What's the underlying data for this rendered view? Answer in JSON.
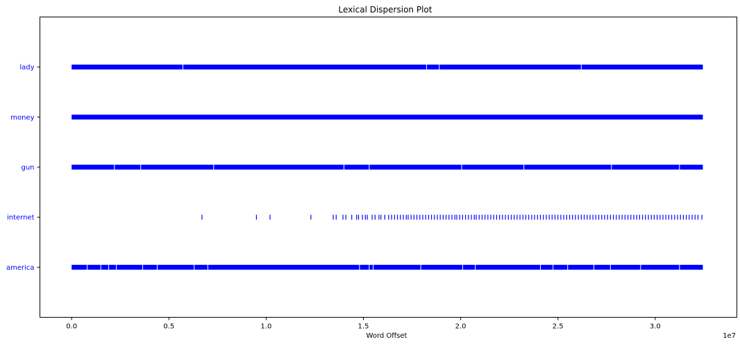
{
  "chart_data": {
    "type": "scatter",
    "title": "Lexical Dispersion Plot",
    "xlabel": "Word Offset",
    "ylabel": "",
    "x_offset_label": "1e7",
    "x_tick_labels": [
      "0.0",
      "0.5",
      "1.0",
      "1.5",
      "2.0",
      "2.5",
      "3.0"
    ],
    "x_ticks": [
      0,
      5000000,
      10000000,
      15000000,
      20000000,
      25000000,
      30000000
    ],
    "xlim": [
      -1630000,
      34200000
    ],
    "grid": false,
    "legend": "none",
    "marker_color": "#0000ff",
    "categories": [
      "lady",
      "money",
      "gun",
      "internet",
      "america"
    ],
    "series": [
      {
        "word": "lady",
        "density": "continuous",
        "offsets": [
          0,
          32450000
        ],
        "gaps": [
          5720000,
          18250000,
          18900000,
          26200000
        ]
      },
      {
        "word": "money",
        "density": "continuous",
        "offsets": [
          0,
          32450000
        ],
        "gaps": []
      },
      {
        "word": "gun",
        "density": "continuous",
        "offsets": [
          0,
          32450000
        ],
        "gaps": [
          2200000,
          3550000,
          7300000,
          14000000,
          15300000,
          20050000,
          23250000,
          27750000,
          31250000
        ]
      },
      {
        "word": "internet",
        "density": "sparse",
        "offsets": [
          6700000,
          9500000,
          10200000,
          12300000,
          13450000,
          13600000,
          13950000,
          14100000,
          14400000,
          14650000,
          14750000,
          14950000,
          15100000,
          15200000,
          15450000,
          15600000,
          15800000,
          15900000,
          16100000,
          16300000,
          16450000,
          16600000,
          16750000,
          16900000,
          17050000,
          17200000,
          17300000,
          17450000,
          17600000,
          17750000,
          17900000,
          18050000,
          18200000,
          18350000,
          18500000,
          18650000,
          18800000,
          18950000,
          19100000,
          19250000,
          19400000,
          19550000,
          19700000,
          19800000,
          19950000,
          20100000,
          20250000,
          20400000,
          20550000,
          20700000,
          20800000,
          20950000,
          21100000,
          21250000,
          21400000,
          21550000,
          21700000,
          21850000,
          22000000,
          22150000,
          22300000,
          22450000,
          22600000,
          22750000,
          22900000,
          23050000,
          23200000,
          23350000,
          23500000,
          23650000,
          23800000,
          23950000,
          24100000,
          24250000,
          24400000,
          24550000,
          24700000,
          24850000,
          25000000,
          25150000,
          25300000,
          25450000,
          25600000,
          25750000,
          25900000,
          26050000,
          26200000,
          26350000,
          26500000,
          26650000,
          26800000,
          26950000,
          27100000,
          27250000,
          27400000,
          27550000,
          27700000,
          27850000,
          28000000,
          28150000,
          28300000,
          28450000,
          28600000,
          28750000,
          28900000,
          29050000,
          29200000,
          29350000,
          29500000,
          29650000,
          29800000,
          29950000,
          30100000,
          30250000,
          30400000,
          30550000,
          30700000,
          30850000,
          31000000,
          31150000,
          31300000,
          31450000,
          31600000,
          31750000,
          31900000,
          32050000,
          32200000,
          32400000
        ]
      },
      {
        "word": "america",
        "density": "continuous",
        "offsets": [
          0,
          32450000
        ],
        "gaps": [
          800000,
          1500000,
          1900000,
          2300000,
          3650000,
          4400000,
          6300000,
          7000000,
          14800000,
          15300000,
          15500000,
          17950000,
          20100000,
          20750000,
          24100000,
          24750000,
          25500000,
          26850000,
          27700000,
          29250000,
          31250000
        ]
      }
    ]
  }
}
